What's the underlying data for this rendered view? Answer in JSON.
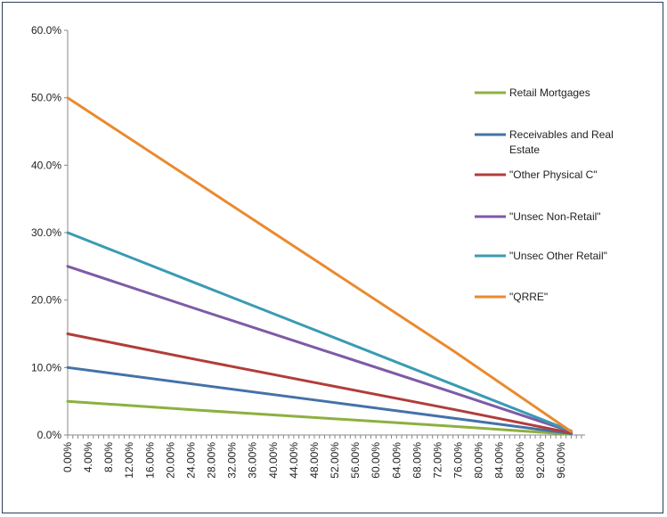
{
  "chart_data": {
    "type": "line",
    "title": "",
    "xlabel": "",
    "ylabel": "",
    "x": [
      0,
      25,
      50,
      75,
      98
    ],
    "x_tick_labels": [
      "0.00%",
      "4.00%",
      "8.00%",
      "12.00%",
      "16.00%",
      "20.00%",
      "24.00%",
      "28.00%",
      "32.00%",
      "36.00%",
      "40.00%",
      "44.00%",
      "48.00%",
      "52.00%",
      "56.00%",
      "60.00%",
      "64.00%",
      "68.00%",
      "72.00%",
      "76.00%",
      "80.00%",
      "84.00%",
      "88.00%",
      "92.00%",
      "96.00%"
    ],
    "y_tick_labels": [
      "0.0%",
      "10.0%",
      "20.0%",
      "30.0%",
      "40.0%",
      "50.0%",
      "60.0%"
    ],
    "ylim": [
      0,
      60
    ],
    "grid": false,
    "legend_position": "right",
    "series": [
      {
        "name": "Retail Mortgages",
        "color": "#8db040",
        "values": [
          5.0,
          3.7,
          2.5,
          1.3,
          0.1
        ]
      },
      {
        "name": "Receivables and Real Estate",
        "color": "#4472a8",
        "values": [
          10.0,
          7.5,
          5.0,
          2.5,
          0.2
        ]
      },
      {
        "name": "\"Other Physical C\"",
        "color": "#b13d38",
        "values": [
          15.0,
          11.2,
          7.5,
          3.8,
          0.3
        ]
      },
      {
        "name": "\"Unsec Non-Retail\"",
        "color": "#7d5ba6",
        "values": [
          25.0,
          18.7,
          12.5,
          6.3,
          0.5
        ]
      },
      {
        "name": "\"Unsec Other Retail\"",
        "color": "#3a9bb3",
        "values": [
          30.0,
          22.5,
          15.0,
          7.5,
          0.6
        ]
      },
      {
        "name": "\"QRRE\"",
        "color": "#ea8a2e",
        "values": [
          50.0,
          37.5,
          25.0,
          12.5,
          0.5
        ]
      }
    ]
  }
}
